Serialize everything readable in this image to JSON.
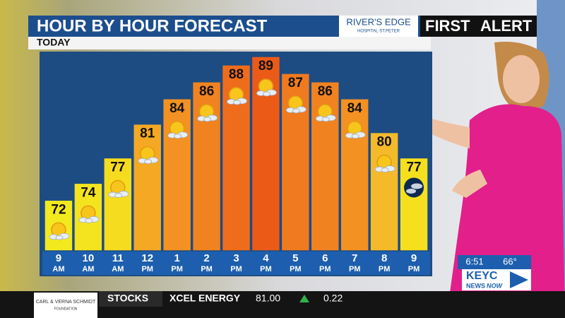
{
  "chart_data": {
    "type": "bar",
    "title": "HOUR BY HOUR FORECAST",
    "subtitle": "TODAY",
    "categories": [
      "9",
      "10",
      "11",
      "12",
      "1",
      "2",
      "3",
      "4",
      "5",
      "6",
      "7",
      "8",
      "9"
    ],
    "category_periods": [
      "AM",
      "AM",
      "AM",
      "PM",
      "PM",
      "PM",
      "PM",
      "PM",
      "PM",
      "PM",
      "PM",
      "PM",
      "PM"
    ],
    "values": [
      72,
      74,
      77,
      81,
      84,
      86,
      88,
      89,
      87,
      86,
      84,
      80,
      77
    ],
    "colors": [
      "#f2ea1e",
      "#f4e41f",
      "#f6dc1e",
      "#f5a823",
      "#f39122",
      "#f18220",
      "#ef6c1c",
      "#ec5a18",
      "#f07a1f",
      "#f18220",
      "#f39122",
      "#f5ba2a",
      "#f6e01e"
    ],
    "ylim": [
      66,
      90
    ]
  },
  "header": {
    "sponsor": [
      "RIVER'S EDGE",
      "HOSPITAL·ST.PETER"
    ],
    "brand": [
      "FIRST",
      "ALERT"
    ]
  },
  "ticker": {
    "sponsor": [
      "CARL & VERNA SCHMIDT",
      "FOUNDATION"
    ],
    "label": "STOCKS",
    "name": "XCEL ENERGY",
    "price": "81.00",
    "change": "0.22"
  },
  "bug": {
    "time": "6:51",
    "temp": "66°",
    "station": "KEYC",
    "tagline": [
      "NEWS",
      "NOW"
    ]
  }
}
